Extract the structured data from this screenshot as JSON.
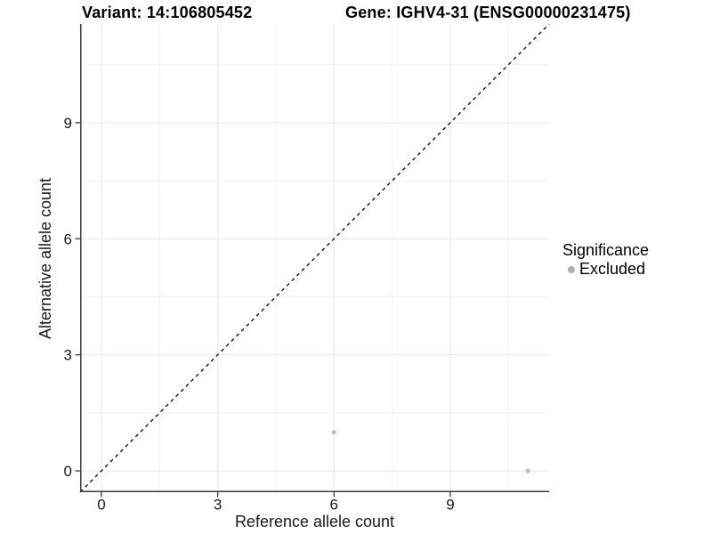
{
  "header": {
    "variant_title": "Variant: 14:106805452",
    "gene_title": "Gene: IGHV4-31 (ENSG00000231475)"
  },
  "legend": {
    "title": "Significance",
    "items": [
      {
        "label": "Excluded",
        "color": "#b0b0b0"
      }
    ]
  },
  "axes": {
    "xlabel": "Reference allele count",
    "ylabel": "Alternative allele count"
  },
  "chart_data": {
    "type": "scatter",
    "title": "Variant: 14:106805452    Gene: IGHV4-31 (ENSG00000231475)",
    "xlabel": "Reference allele count",
    "ylabel": "Alternative allele count",
    "xlim": [
      -0.55,
      11.55
    ],
    "ylim": [
      -0.55,
      11.55
    ],
    "x_ticks": [
      0,
      3,
      6,
      9
    ],
    "y_ticks": [
      0,
      3,
      6,
      9
    ],
    "x_minor_ticks": [
      1.5,
      4.5,
      7.5,
      10.5
    ],
    "y_minor_ticks": [
      1.5,
      4.5,
      7.5,
      10.5
    ],
    "grid": true,
    "legend_position": "right",
    "legend_title": "Significance",
    "series": [
      {
        "name": "Excluded",
        "color": "#bdbdbd",
        "points": [
          {
            "x": 6,
            "y": 1
          },
          {
            "x": 11,
            "y": 0
          }
        ]
      }
    ],
    "reference_line": {
      "slope": 1,
      "intercept": 0,
      "style": "dashed",
      "color": "#000000"
    }
  },
  "style_colors": {
    "axis_line": "#3c3c3c",
    "tick_text": "#1a1a1a",
    "grid_major": "#e7e7e7",
    "grid_minor": "#f2f2f2",
    "background": "#ffffff"
  }
}
